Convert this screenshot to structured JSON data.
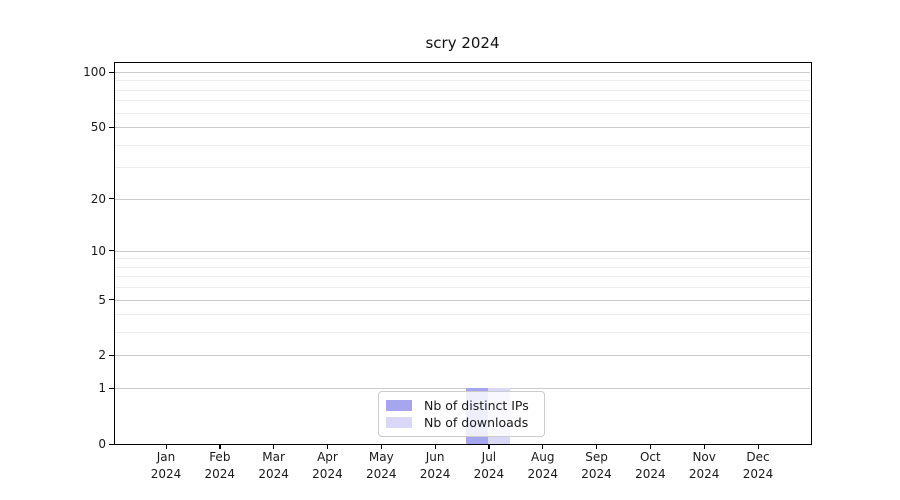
{
  "title": "scry 2024",
  "colors": {
    "background": "#ffffff",
    "spine": "#000000",
    "grid_major": "#cccccc",
    "grid_minor": "#ececec",
    "text": "#1a1a1a",
    "series_ips": "#a6a6ee",
    "series_downloads": "#d9d9f7",
    "legend_border": "#cccccc"
  },
  "chart_data": {
    "type": "bar",
    "title": "scry 2024",
    "categories": [
      "Jan",
      "Feb",
      "Mar",
      "Apr",
      "May",
      "Jun",
      "Jul",
      "Aug",
      "Sep",
      "Oct",
      "Nov",
      "Dec"
    ],
    "x_year": "2024",
    "series": [
      {
        "name": "Nb of distinct IPs",
        "color": "#a6a6ee",
        "values": [
          0,
          0,
          0,
          0,
          0,
          0,
          1,
          0,
          0,
          0,
          0,
          0
        ]
      },
      {
        "name": "Nb of downloads",
        "color": "#d9d9f7",
        "values": [
          0,
          0,
          0,
          0,
          0,
          0,
          1,
          0,
          0,
          0,
          0,
          0
        ]
      }
    ],
    "xlabel": "",
    "ylabel": "",
    "yscale": "log1p",
    "ylim": [
      0,
      113.4
    ],
    "yticks": [
      0,
      1,
      2,
      5,
      10,
      20,
      50,
      100
    ],
    "yticks_minor": [
      3,
      4,
      6,
      7,
      8,
      9,
      30,
      40,
      60,
      70,
      80,
      90
    ],
    "grid": true,
    "legend_position": "lower center"
  }
}
